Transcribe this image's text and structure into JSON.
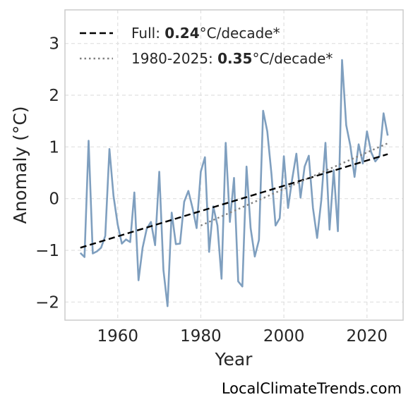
{
  "chart_data": {
    "type": "line",
    "title": "",
    "xlabel": "Year",
    "ylabel": "Anomaly (°C)",
    "xlim": [
      1947.3,
      2028.7
    ],
    "ylim": [
      -2.35,
      3.65
    ],
    "xticks": [
      1960,
      1980,
      2000,
      2020
    ],
    "yticks": [
      -2,
      -1,
      0,
      1,
      2,
      3
    ],
    "ytick_labels": [
      "−2",
      "−1",
      "0",
      "1",
      "2",
      "3"
    ],
    "grid": true,
    "legend_position": "top-left",
    "series": [
      {
        "name": "",
        "color": "#7f9fbf",
        "style": "solid",
        "x": [
          1951,
          1952,
          1953,
          1954,
          1955,
          1956,
          1957,
          1958,
          1959,
          1960,
          1961,
          1962,
          1963,
          1964,
          1965,
          1966,
          1967,
          1968,
          1969,
          1970,
          1971,
          1972,
          1973,
          1974,
          1975,
          1976,
          1977,
          1978,
          1979,
          1980,
          1981,
          1982,
          1983,
          1984,
          1985,
          1986,
          1987,
          1988,
          1989,
          1990,
          1991,
          1992,
          1993,
          1994,
          1995,
          1996,
          1997,
          1998,
          1999,
          2000,
          2001,
          2002,
          2003,
          2004,
          2005,
          2006,
          2007,
          2008,
          2009,
          2010,
          2011,
          2012,
          2013,
          2014,
          2015,
          2016,
          2017,
          2018,
          2019,
          2020,
          2021,
          2022,
          2023,
          2024,
          2025
        ],
        "y": [
          -1.05,
          -1.13,
          1.12,
          -1.06,
          -1.02,
          -0.95,
          -0.72,
          0.96,
          0.05,
          -0.5,
          -0.87,
          -0.79,
          -0.84,
          0.12,
          -1.58,
          -0.95,
          -0.58,
          -0.45,
          -0.9,
          0.52,
          -1.38,
          -2.08,
          -0.27,
          -0.88,
          -0.87,
          -0.06,
          0.15,
          -0.18,
          -0.57,
          0.52,
          0.8,
          -1.03,
          -0.15,
          -0.52,
          -1.55,
          1.08,
          -0.45,
          0.4,
          -1.6,
          -1.7,
          0.62,
          -0.57,
          -1.12,
          -0.8,
          1.7,
          1.3,
          0.48,
          -0.52,
          -0.38,
          0.82,
          -0.18,
          0.38,
          0.87,
          0.02,
          0.62,
          0.83,
          -0.18,
          -0.76,
          -0.03,
          1.08,
          -0.6,
          0.55,
          -0.63,
          2.68,
          1.42,
          1.02,
          0.42,
          1.05,
          0.68,
          1.3,
          0.9,
          0.72,
          0.82,
          1.65,
          1.22
        ]
      },
      {
        "name": "Full: 0.24°C/decade*",
        "label_prefix": "Full: ",
        "label_bold": "0.24",
        "label_suffix": "°C/decade*",
        "color": "#000000",
        "style": "dashed",
        "x": [
          1951,
          2025
        ],
        "y": [
          -0.95,
          0.86
        ]
      },
      {
        "name": "1980-2025: 0.35°C/decade*",
        "label_prefix": "1980-2025: ",
        "label_bold": "0.35",
        "label_suffix": "°C/decade*",
        "color": "#808080",
        "style": "dotted",
        "x": [
          1980,
          2025
        ],
        "y": [
          -0.52,
          1.07
        ]
      }
    ]
  },
  "watermark": "LocalClimateTrends.com"
}
